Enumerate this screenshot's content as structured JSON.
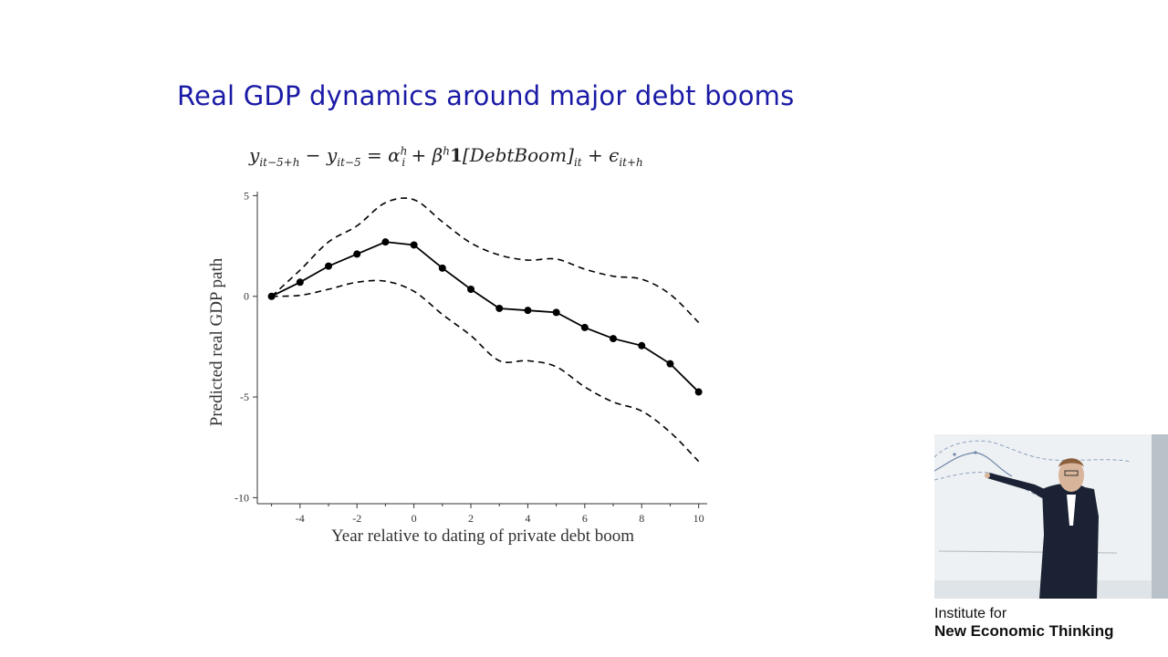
{
  "slide": {
    "title": "Real GDP dynamics around major debt booms"
  },
  "equation": {
    "lhs_y1": "y",
    "lhs_sub1": "it−5+h",
    "minus": " − ",
    "lhs_y2": "y",
    "lhs_sub2": "it−5",
    "equals": " = ",
    "alpha": "α",
    "alpha_sup": "h",
    "alpha_sub": "i",
    "plus1": " + ",
    "beta": "β",
    "beta_sup": "h",
    "indicator": "1",
    "bracket_content": "[DebtBoom]",
    "bracket_sub": "it",
    "plus2": " + ",
    "eps": "ϵ",
    "eps_sub": "it+h"
  },
  "chart_data": {
    "type": "line",
    "xlabel": "Year relative to dating of private debt boom",
    "ylabel": "Predicted real GDP path",
    "x": [
      -5,
      -4,
      -3,
      -2,
      -1,
      0,
      1,
      2,
      3,
      4,
      5,
      6,
      7,
      8,
      9,
      10
    ],
    "xticks": [
      -4,
      -2,
      0,
      2,
      4,
      6,
      8,
      10
    ],
    "xtick_labels": [
      "-4",
      "-2",
      "0",
      "2",
      "4",
      "6",
      "8",
      "10"
    ],
    "yticks": [
      5,
      0,
      -5,
      -10
    ],
    "ytick_labels": [
      "5",
      "0",
      "-5",
      "-10"
    ],
    "xlim": [
      -5.5,
      10.3
    ],
    "ylim": [
      -10.3,
      5.2
    ],
    "grid": false,
    "series": [
      {
        "role": "estimate",
        "style": "solid-markers",
        "values": [
          0.0,
          0.7,
          1.5,
          2.1,
          2.7,
          2.55,
          1.4,
          0.35,
          -0.6,
          -0.7,
          -0.8,
          -1.55,
          -2.1,
          -2.45,
          -3.35,
          -4.75
        ]
      },
      {
        "role": "upper-band",
        "style": "dashed",
        "values": [
          0.0,
          1.3,
          2.7,
          3.5,
          4.65,
          4.8,
          3.7,
          2.65,
          2.05,
          1.8,
          1.85,
          1.35,
          1.0,
          0.85,
          0.1,
          -1.3
        ]
      },
      {
        "role": "lower-band",
        "style": "dashed",
        "values": [
          0.0,
          0.05,
          0.35,
          0.7,
          0.75,
          0.25,
          -0.9,
          -1.95,
          -3.2,
          -3.2,
          -3.5,
          -4.5,
          -5.25,
          -5.7,
          -6.75,
          -8.2
        ]
      }
    ],
    "colors": {
      "line": "#000000",
      "axis": "#333333"
    }
  },
  "video_inset": {
    "description_icon": "presenter-video-icon"
  },
  "brand": {
    "line1": "Institute for",
    "line2": "New Economic Thinking"
  },
  "colors": {
    "title": "#1a1aa6",
    "background": "#ffffff"
  }
}
